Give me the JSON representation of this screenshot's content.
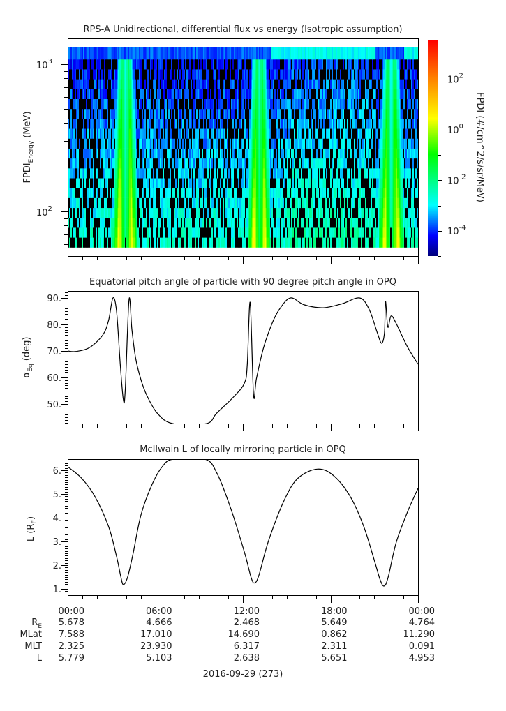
{
  "chart_data": [
    {
      "type": "heatmap",
      "title": "RPS-A Unidirectional, differential flux vs energy (Isotropic assumption)",
      "ylabel": {
        "main": "FPDI",
        "sub": "Energy",
        "unit": " (MeV)"
      },
      "yscale": "log",
      "ylim": [
        50,
        1450
      ],
      "yticks": [
        {
          "base": "10",
          "exp": "2",
          "value": 100
        },
        {
          "base": "10",
          "exp": "3",
          "value": 1000
        }
      ],
      "xlim_hours": [
        0,
        24
      ],
      "energy_bin_range": [
        57,
        1310
      ],
      "energy_bin_count": 20,
      "bright_bands_hours": [
        [
          3.5,
          4.4
        ],
        [
          12.75,
          13.5
        ],
        [
          21.7,
          22.6
        ]
      ],
      "background_log10_flux_range": [
        -4.2,
        -2.6
      ],
      "band_peak_log10_flux": 0.6,
      "colorbar": {
        "label": "FPDI (#/cm^2/s/sr/MeV)",
        "range_log10": [
          -5,
          3.5
        ],
        "ticks": [
          {
            "base": "10",
            "exp": "2",
            "value": 2
          },
          {
            "base": "10",
            "exp": "0",
            "value": 0
          },
          {
            "base": "10",
            "exp": "-2",
            "value": -2
          },
          {
            "base": "10",
            "exp": "-4",
            "value": -4
          }
        ],
        "colors": [
          "#00007a",
          "#0000ff",
          "#00ffff",
          "#00ff00",
          "#ffff00",
          "#ff8000",
          "#ff0000"
        ],
        "color_stops_log10": [
          -5,
          -4.2,
          -3.0,
          -1.0,
          0.4,
          2.0,
          3.5
        ]
      }
    },
    {
      "type": "line",
      "title": "Equatorial pitch angle of particle with 90 degree pitch angle in OPQ",
      "ylabel": {
        "main": "α",
        "sub": "Eq",
        "unit": " (deg)"
      },
      "ylim": [
        42.6,
        92.6
      ],
      "yticks": [
        {
          "label": "50.",
          "value": 50
        },
        {
          "label": "60.",
          "value": 60
        },
        {
          "label": "70.",
          "value": 70
        },
        {
          "label": "80.",
          "value": 80
        },
        {
          "label": "90.",
          "value": 90
        }
      ],
      "x_hours": [
        0,
        0.56,
        1.5,
        2.4,
        2.8,
        3.1,
        3.35,
        3.6,
        3.81,
        3.94,
        4.2,
        4.4,
        4.65,
        5.0,
        5.4,
        6.14,
        7.2,
        9.5,
        10.2,
        11.35,
        12.1,
        12.3,
        12.5,
        12.73,
        12.93,
        13.4,
        14.0,
        14.5,
        15.26,
        16.2,
        17.5,
        18.8,
        20.0,
        20.65,
        21.2,
        21.5,
        21.7,
        21.77,
        21.93,
        22.15,
        22.5,
        23.26,
        24.0
      ],
      "y": [
        70.0,
        69.8,
        71.3,
        76.0,
        81.5,
        90.0,
        84.8,
        65.0,
        51.7,
        55.0,
        89.3,
        78.0,
        67.4,
        59.5,
        53.5,
        46.5,
        42.6,
        42.6,
        46.5,
        52.6,
        57.8,
        64.8,
        88.3,
        53.5,
        59.6,
        70.9,
        80.4,
        85.7,
        90.0,
        87.4,
        86.3,
        87.8,
        90.0,
        85.7,
        77.0,
        72.9,
        77.0,
        88.7,
        79.0,
        83.2,
        80.4,
        71.7,
        65.0
      ]
    },
    {
      "type": "line",
      "title": "McIlwain L of locally mirroring particle in OPQ",
      "ylabel": {
        "main": "L (R",
        "sub": "E",
        "unit": ")"
      },
      "ylim": [
        0.74,
        6.47
      ],
      "yticks": [
        {
          "label": "1.",
          "value": 1
        },
        {
          "label": "2.",
          "value": 2
        },
        {
          "label": "3.",
          "value": 3
        },
        {
          "label": "4.",
          "value": 4
        },
        {
          "label": "5.",
          "value": 5
        },
        {
          "label": "6.",
          "value": 6
        }
      ],
      "x_hours": [
        0,
        0.93,
        1.86,
        2.8,
        3.35,
        3.63,
        3.81,
        4.1,
        4.47,
        5.02,
        5.77,
        6.5,
        7.25,
        9.4,
        10.23,
        11.16,
        12.1,
        12.56,
        12.8,
        13.1,
        13.77,
        14.88,
        15.8,
        17.1,
        18.2,
        19.35,
        20.28,
        21.02,
        21.4,
        21.67,
        21.95,
        22.5,
        23.26,
        24.0
      ],
      "y": [
        6.15,
        5.68,
        4.9,
        3.63,
        2.36,
        1.54,
        1.18,
        1.49,
        2.46,
        4.12,
        5.39,
        6.17,
        6.47,
        6.47,
        5.87,
        4.41,
        2.56,
        1.49,
        1.25,
        1.58,
        3.05,
        4.8,
        5.68,
        6.05,
        5.78,
        4.9,
        3.63,
        2.17,
        1.39,
        1.12,
        1.49,
        2.95,
        4.22,
        5.24
      ]
    }
  ],
  "xaxis": {
    "tick_labels": [
      "00:00",
      "06:00",
      "12:00",
      "18:00",
      "00:00"
    ],
    "rows": [
      {
        "label": "R",
        "sub": "E",
        "values": [
          "5.678",
          "4.666",
          "2.468",
          "5.649",
          "4.764"
        ]
      },
      {
        "label": "MLat",
        "sub": "",
        "values": [
          "7.588",
          "17.010",
          "14.690",
          "0.862",
          "11.290"
        ]
      },
      {
        "label": "MLT",
        "sub": "",
        "values": [
          "2.325",
          "23.930",
          "6.317",
          "2.311",
          "0.091"
        ]
      },
      {
        "label": "L",
        "sub": "",
        "values": [
          "5.779",
          "5.103",
          "2.638",
          "5.651",
          "4.953"
        ]
      }
    ],
    "date": "2016-09-29 (273)"
  }
}
